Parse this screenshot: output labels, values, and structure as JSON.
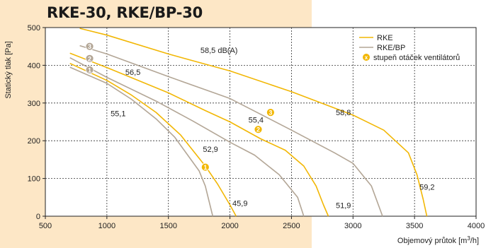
{
  "title": "RKE-30, RKE/BP-30",
  "colors": {
    "rke": "#f2b705",
    "rke_bp": "#b3a696",
    "marker": "#f2b705",
    "background_band": "#fde7c6"
  },
  "chart_data": {
    "type": "line",
    "title": "RKE-30, RKE/BP-30",
    "xlabel": "Objemový průtok [m³/h]",
    "xlabel_main": "Objemový průtok [m",
    "xlabel_sup": "3",
    "xlabel_tail": "/h]",
    "ylabel": "Statický tlak [Pa]",
    "xlim": [
      500,
      4000
    ],
    "ylim": [
      0,
      500
    ],
    "x_ticks": [
      500,
      1000,
      1500,
      2000,
      2500,
      3000,
      3500,
      4000
    ],
    "y_ticks": [
      0,
      100,
      200,
      300,
      400,
      500
    ],
    "x_tick_labels": [
      "500",
      "1000",
      "1500",
      "2000",
      "2500",
      "3000",
      "3500",
      "4000"
    ],
    "y_tick_labels": [
      "0",
      "100",
      "200",
      "300",
      "400",
      "500"
    ],
    "grid": true,
    "legend_position": "top-right",
    "legend": [
      {
        "label": "RKE",
        "type": "line",
        "color": "#f2b705"
      },
      {
        "label": "RKE/BP",
        "type": "line",
        "color": "#b3a696"
      },
      {
        "label": "stupeň otáček ventilátorů",
        "type": "marker",
        "symbol": "x"
      }
    ],
    "series": [
      {
        "name": "RKE",
        "speed": "3",
        "color": "#f2b705",
        "points": [
          [
            780,
            498
          ],
          [
            1000,
            480
          ],
          [
            1500,
            430
          ],
          [
            2000,
            385
          ],
          [
            2500,
            330
          ],
          [
            3000,
            268
          ],
          [
            3250,
            228
          ],
          [
            3450,
            168
          ],
          [
            3520,
            110
          ],
          [
            3570,
            45
          ],
          [
            3600,
            0
          ]
        ]
      },
      {
        "name": "RKE",
        "speed": "2",
        "color": "#f2b705",
        "points": [
          [
            700,
            432
          ],
          [
            1000,
            394
          ],
          [
            1500,
            327
          ],
          [
            1800,
            280
          ],
          [
            2000,
            250
          ],
          [
            2250,
            205
          ],
          [
            2450,
            175
          ],
          [
            2600,
            133
          ],
          [
            2700,
            80
          ],
          [
            2760,
            30
          ],
          [
            2800,
            0
          ]
        ]
      },
      {
        "name": "RKE",
        "speed": "1",
        "color": "#f2b705",
        "points": [
          [
            700,
            405
          ],
          [
            1000,
            360
          ],
          [
            1200,
            321
          ],
          [
            1400,
            275
          ],
          [
            1600,
            215
          ],
          [
            1800,
            133
          ],
          [
            1900,
            85
          ],
          [
            2000,
            30
          ],
          [
            2050,
            0
          ]
        ]
      },
      {
        "name": "RKE/BP",
        "speed": "3",
        "color": "#b3a696",
        "points": [
          [
            780,
            452
          ],
          [
            1000,
            430
          ],
          [
            1500,
            370
          ],
          [
            2000,
            312
          ],
          [
            2500,
            228
          ],
          [
            2850,
            168
          ],
          [
            3000,
            140
          ],
          [
            3150,
            80
          ],
          [
            3240,
            0
          ]
        ]
      },
      {
        "name": "RKE/BP",
        "speed": "2",
        "color": "#b3a696",
        "points": [
          [
            700,
            420
          ],
          [
            1000,
            368
          ],
          [
            1400,
            305
          ],
          [
            1700,
            252
          ],
          [
            2000,
            196
          ],
          [
            2200,
            162
          ],
          [
            2400,
            110
          ],
          [
            2550,
            50
          ],
          [
            2600,
            0
          ]
        ]
      },
      {
        "name": "RKE/BP",
        "speed": "1",
        "color": "#b3a696",
        "points": [
          [
            700,
            395
          ],
          [
            1000,
            352
          ],
          [
            1200,
            310
          ],
          [
            1400,
            258
          ],
          [
            1550,
            210
          ],
          [
            1750,
            120
          ],
          [
            1800,
            80
          ],
          [
            1860,
            0
          ]
        ]
      }
    ],
    "speed_markers": [
      {
        "series": "RKE",
        "label": "3",
        "x": 2330,
        "y": 275
      },
      {
        "series": "RKE",
        "label": "2",
        "x": 2230,
        "y": 230
      },
      {
        "series": "RKE",
        "label": "1",
        "x": 1800,
        "y": 130
      },
      {
        "series": "RKE/BP",
        "label": "3",
        "x": 860,
        "y": 450
      },
      {
        "series": "RKE/BP",
        "label": "2",
        "x": 860,
        "y": 418
      },
      {
        "series": "RKE/BP",
        "label": "1",
        "x": 860,
        "y": 388
      }
    ],
    "annotations": [
      {
        "text": "58,5 dB(A)",
        "x": 1760,
        "y": 433
      },
      {
        "text": "56,5",
        "x": 1150,
        "y": 375
      },
      {
        "text": "55,1",
        "x": 1030,
        "y": 265
      },
      {
        "text": "55,4",
        "x": 2150,
        "y": 248
      },
      {
        "text": "58,8",
        "x": 2860,
        "y": 268
      },
      {
        "text": "52,9",
        "x": 1780,
        "y": 170
      },
      {
        "text": "45,9",
        "x": 2020,
        "y": 27
      },
      {
        "text": "51,9",
        "x": 2860,
        "y": 22
      },
      {
        "text": "59,2",
        "x": 3540,
        "y": 70
      }
    ]
  }
}
